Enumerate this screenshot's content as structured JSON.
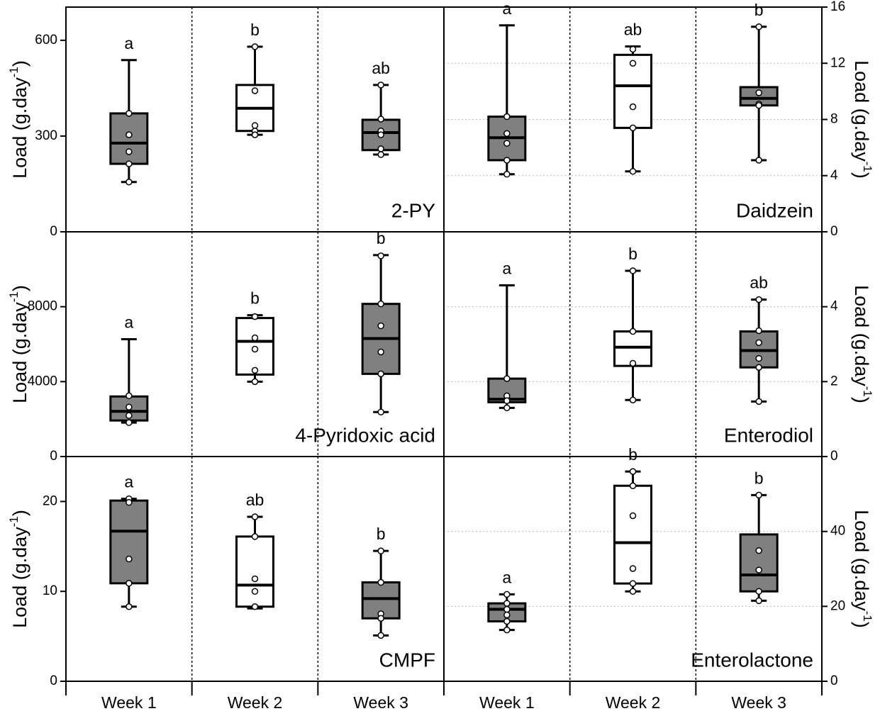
{
  "chart_data": [
    {
      "type": "box",
      "title": "2-PY",
      "y_label": [
        "Load (g.day",
        "-1",
        ")"
      ],
      "axis_side": "left",
      "grid": false,
      "ylim": [
        0,
        704
      ],
      "yticks": [
        0,
        300,
        600
      ],
      "boxes": [
        {
          "whislo": 156,
          "q1": 213,
          "med": 278,
          "q3": 371,
          "whishi": 538,
          "points": [
            371,
            304,
            251,
            213,
            156
          ],
          "letter": "a",
          "color": "#808080"
        },
        {
          "whislo": 304,
          "q1": 316,
          "med": 387,
          "q3": 460,
          "whishi": 580,
          "points": [
            580,
            442,
            333,
            316,
            304
          ],
          "letter": "b",
          "color": "#ffffff"
        },
        {
          "whislo": 242,
          "q1": 256,
          "med": 311,
          "q3": 351,
          "whishi": 460,
          "points": [
            460,
            353,
            316,
            304,
            260,
            242
          ],
          "letter": "ab",
          "color": "#808080"
        }
      ]
    },
    {
      "type": "box",
      "title": "Daidzein",
      "y_label": [
        "Load (g.day",
        "-1",
        ")"
      ],
      "axis_side": "right",
      "grid": true,
      "ylim": [
        0,
        16
      ],
      "yticks": [
        0,
        4,
        8,
        12,
        16
      ],
      "boxes": [
        {
          "whislo": 4.1,
          "q1": 5.1,
          "med": 6.7,
          "q3": 8.2,
          "whishi": 14.7,
          "points": [
            8.2,
            7.0,
            6.3,
            5.1,
            4.1
          ],
          "letter": "a",
          "color": "#808080"
        },
        {
          "whislo": 4.3,
          "q1": 7.4,
          "med": 10.4,
          "q3": 12.6,
          "whishi": 13.2,
          "points": [
            13.0,
            12.0,
            8.9,
            7.4,
            4.3
          ],
          "letter": "ab",
          "color": "#ffffff"
        },
        {
          "whislo": 5.1,
          "q1": 9.0,
          "med": 9.5,
          "q3": 10.3,
          "whishi": 14.6,
          "points": [
            14.6,
            9.9,
            9.1,
            9.0,
            5.1
          ],
          "letter": "b",
          "color": "#808080"
        }
      ]
    },
    {
      "type": "box",
      "title": "4-Pyridoxic acid",
      "y_label": [
        "Load (g.day",
        "-1",
        ")"
      ],
      "axis_side": "left",
      "grid": false,
      "ylim": [
        0,
        12000
      ],
      "yticks": [
        0,
        4000,
        8000
      ],
      "boxes": [
        {
          "whislo": 1811,
          "q1": 1925,
          "med": 2415,
          "q3": 3208,
          "whishi": 6264,
          "points": [
            3245,
            2642,
            2189,
            1811
          ],
          "letter": "a",
          "color": "#808080"
        },
        {
          "whislo": 4000,
          "q1": 4377,
          "med": 6151,
          "q3": 7396,
          "whishi": 7547,
          "points": [
            7472,
            6340,
            5736,
            4604,
            4000
          ],
          "letter": "b",
          "color": "#ffffff"
        },
        {
          "whislo": 2377,
          "q1": 4415,
          "med": 6302,
          "q3": 8151,
          "whishi": 10755,
          "points": [
            10717,
            8151,
            6981,
            5585,
            4415,
            2377
          ],
          "letter": "b",
          "color": "#808080"
        }
      ]
    },
    {
      "type": "box",
      "title": "Enterodiol",
      "y_label": [
        "Load (g.day",
        "-1",
        ")"
      ],
      "axis_side": "right",
      "grid": true,
      "ylim": [
        0,
        6
      ],
      "yticks": [
        0,
        2,
        4
      ],
      "boxes": [
        {
          "whislo": 1.3,
          "q1": 1.45,
          "med": 1.53,
          "q3": 2.08,
          "whishi": 4.57,
          "points": [
            2.08,
            1.62,
            1.49,
            1.3
          ],
          "letter": "a",
          "color": "#808080"
        },
        {
          "whislo": 1.51,
          "q1": 2.42,
          "med": 2.92,
          "q3": 3.34,
          "whishi": 4.96,
          "points": [
            4.96,
            3.34,
            2.49,
            1.51
          ],
          "letter": "b",
          "color": "#ffffff"
        },
        {
          "whislo": 1.47,
          "q1": 2.38,
          "med": 2.83,
          "q3": 3.34,
          "whishi": 4.19,
          "points": [
            4.19,
            3.36,
            3.04,
            2.62,
            2.38,
            1.47
          ],
          "letter": "ab",
          "color": "#808080"
        }
      ]
    },
    {
      "type": "box",
      "title": "CMPF",
      "y_label": [
        "Load (g.day",
        "-1",
        ")"
      ],
      "axis_side": "left",
      "grid": false,
      "ylim": [
        0,
        25
      ],
      "yticks": [
        0,
        10,
        20
      ],
      "categories": [
        "Week 1",
        "Week 2",
        "Week 3"
      ],
      "boxes": [
        {
          "whislo": 8.3,
          "q1": 10.9,
          "med": 16.7,
          "q3": 20.1,
          "whishi": 20.3,
          "points": [
            20.3,
            19.9,
            13.6,
            10.9,
            8.3
          ],
          "letter": "a",
          "color": "#808080"
        },
        {
          "whislo": 8.1,
          "q1": 8.3,
          "med": 10.7,
          "q3": 16.1,
          "whishi": 18.3,
          "points": [
            18.3,
            16.1,
            11.4,
            10.0,
            8.3
          ],
          "letter": "ab",
          "color": "#ffffff"
        },
        {
          "whislo": 5.1,
          "q1": 7.0,
          "med": 9.2,
          "q3": 11.0,
          "whishi": 14.5,
          "points": [
            14.5,
            11.0,
            7.5,
            7.0,
            5.1
          ],
          "letter": "b",
          "color": "#808080"
        }
      ]
    },
    {
      "type": "box",
      "title": "Enterolactone",
      "y_label": [
        "Load (g.day",
        "-1",
        ")"
      ],
      "axis_side": "right",
      "grid": true,
      "ylim": [
        0,
        60
      ],
      "yticks": [
        0,
        20,
        40
      ],
      "categories": [
        "Week 1",
        "Week 2",
        "Week 3"
      ],
      "boxes": [
        {
          "whislo": 13.7,
          "q1": 16.0,
          "med": 19.2,
          "q3": 20.8,
          "whishi": 23.2,
          "points": [
            23.2,
            20.8,
            19.2,
            17.7,
            16.0,
            13.7
          ],
          "letter": "a",
          "color": "#808080"
        },
        {
          "whislo": 24.0,
          "q1": 26.1,
          "med": 37.0,
          "q3": 52.2,
          "whishi": 56.0,
          "points": [
            56.0,
            52.2,
            44.2,
            30.1,
            26.1,
            24.0
          ],
          "letter": "b",
          "color": "#ffffff"
        },
        {
          "whislo": 21.5,
          "q1": 24.0,
          "med": 28.4,
          "q3": 39.2,
          "whishi": 49.7,
          "points": [
            49.7,
            34.9,
            29.7,
            24.0,
            21.5
          ],
          "letter": "b",
          "color": "#808080"
        }
      ]
    }
  ]
}
